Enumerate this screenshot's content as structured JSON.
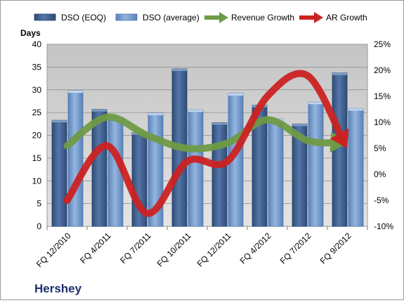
{
  "chart_data": {
    "type": "bar",
    "title": "Hershey",
    "ylabel": "Days",
    "ylim": [
      0,
      40
    ],
    "y2lim": [
      -10,
      25
    ],
    "yticks": [
      "0",
      "5",
      "10",
      "15",
      "20",
      "25",
      "30",
      "35",
      "40"
    ],
    "y2ticks": [
      "-10%",
      "-5%",
      "0%",
      "5%",
      "10%",
      "15%",
      "20%",
      "25%"
    ],
    "categories": [
      "FQ 12/2010",
      "FQ 4/2011",
      "FQ 7/2011",
      "FQ 10/2011",
      "FQ 12/2011",
      "FQ 4/2012",
      "FQ 7/2012",
      "FQ 9/2012"
    ],
    "legend_position": "top",
    "grid": true,
    "series": [
      {
        "name": "DSO (EOQ)",
        "kind": "bar",
        "axis": "left",
        "color": "#3d5f8f",
        "values": [
          23.3,
          25.7,
          20.6,
          34.6,
          22.8,
          26.6,
          22.5,
          33.7
        ]
      },
      {
        "name": "DSO (average)",
        "kind": "bar",
        "axis": "left",
        "color": "#6f97cb",
        "values": [
          29.8,
          23.9,
          24.9,
          25.6,
          29.2,
          23.6,
          27.3,
          25.9
        ]
      },
      {
        "name": "Revenue Growth",
        "kind": "arrow-line",
        "axis": "right",
        "color": "#6f9a45",
        "values": [
          5.5,
          11.0,
          7.5,
          5.0,
          6.0,
          10.5,
          6.5,
          6.0
        ]
      },
      {
        "name": "AR Growth",
        "kind": "arrow-line",
        "axis": "right",
        "color": "#cc2222",
        "values": [
          -5.0,
          5.5,
          -7.5,
          2.5,
          2.5,
          15.0,
          19.0,
          5.0
        ]
      }
    ]
  }
}
